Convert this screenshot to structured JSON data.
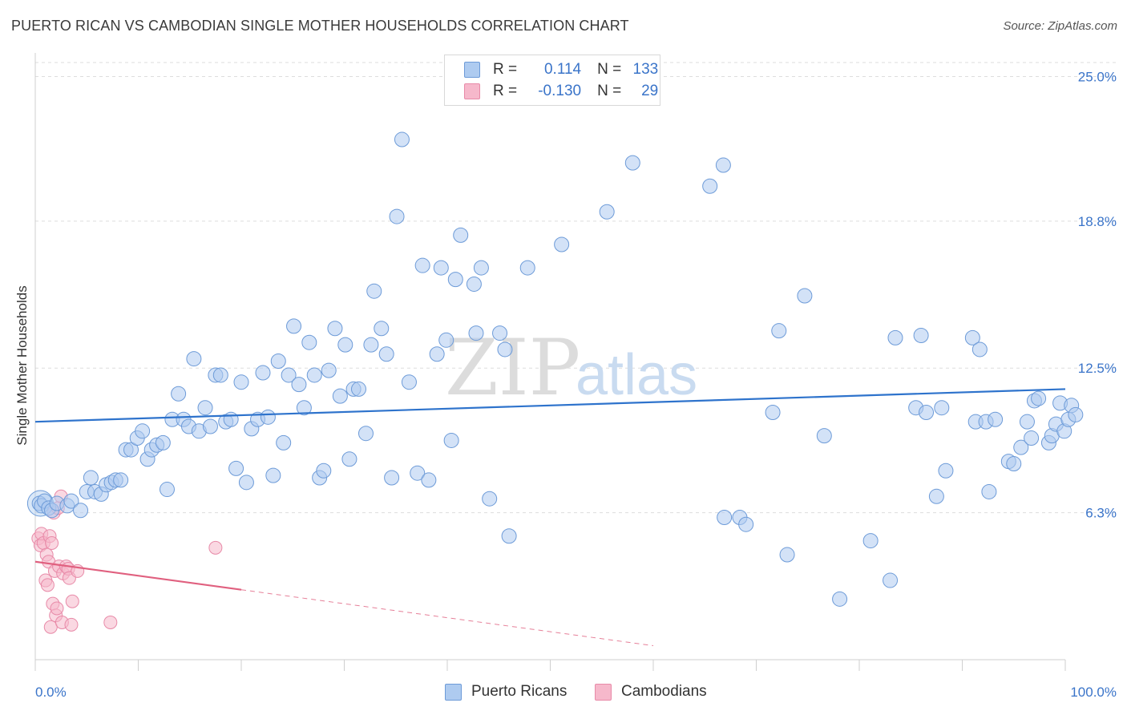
{
  "title": "PUERTO RICAN VS CAMBODIAN SINGLE MOTHER HOUSEHOLDS CORRELATION CHART",
  "source": "Source: ZipAtlas.com",
  "watermark": {
    "zip": "ZIP",
    "atlas": "atlas"
  },
  "colors": {
    "blue_fill": "#aecbf0",
    "blue_stroke": "#6d9bd8",
    "blue_line": "#2e73cc",
    "pink_fill": "#f6b8cb",
    "pink_stroke": "#e88aa8",
    "pink_line": "#e0607f",
    "axis_label": "#3a74c9",
    "grid": "#dddddd"
  },
  "legend": {
    "r_label": "R =",
    "n_label": "N =",
    "puerto_rican": {
      "r": "0.114",
      "n": "133"
    },
    "cambodian": {
      "r": "-0.130",
      "n": "29"
    }
  },
  "chart_data": {
    "type": "scatter",
    "title": "PUERTO RICAN VS CAMBODIAN SINGLE MOTHER HOUSEHOLDS CORRELATION CHART",
    "xlabel": "",
    "ylabel": "Single Mother Households",
    "xlim": [
      0,
      100
    ],
    "ylim": [
      0,
      25.6
    ],
    "x_tick_labels": [
      "0.0%",
      "100.0%"
    ],
    "y_ticks": [
      6.3,
      12.5,
      18.8,
      25.0
    ],
    "y_tick_labels": [
      "6.3%",
      "12.5%",
      "18.8%",
      "25.0%"
    ],
    "series": [
      {
        "name": "Puerto Ricans",
        "color": "blue",
        "trend": {
          "x": [
            0,
            100
          ],
          "y": [
            10.2,
            11.6
          ]
        },
        "points": [
          [
            0.4,
            6.7
          ],
          [
            0.6,
            6.6
          ],
          [
            0.9,
            6.8
          ],
          [
            1.3,
            6.5
          ],
          [
            1.6,
            6.4
          ],
          [
            2.1,
            6.7
          ],
          [
            3.1,
            6.6
          ],
          [
            3.5,
            6.8
          ],
          [
            4.4,
            6.4
          ],
          [
            5.0,
            7.2
          ],
          [
            5.4,
            7.8
          ],
          [
            5.8,
            7.2
          ],
          [
            6.4,
            7.1
          ],
          [
            6.9,
            7.5
          ],
          [
            7.4,
            7.6
          ],
          [
            7.8,
            7.7
          ],
          [
            8.3,
            7.7
          ],
          [
            8.8,
            9.0
          ],
          [
            9.3,
            9.0
          ],
          [
            9.9,
            9.5
          ],
          [
            10.4,
            9.8
          ],
          [
            10.9,
            8.6
          ],
          [
            11.3,
            9.0
          ],
          [
            11.8,
            9.2
          ],
          [
            12.4,
            9.3
          ],
          [
            12.8,
            7.3
          ],
          [
            13.3,
            10.3
          ],
          [
            13.9,
            11.4
          ],
          [
            14.4,
            10.3
          ],
          [
            14.9,
            10.0
          ],
          [
            15.4,
            12.9
          ],
          [
            15.9,
            9.8
          ],
          [
            16.5,
            10.8
          ],
          [
            17.0,
            10.0
          ],
          [
            17.5,
            12.2
          ],
          [
            18.0,
            12.2
          ],
          [
            18.5,
            10.2
          ],
          [
            19.0,
            10.3
          ],
          [
            19.5,
            8.2
          ],
          [
            20.0,
            11.9
          ],
          [
            20.5,
            7.6
          ],
          [
            21.0,
            9.9
          ],
          [
            21.6,
            10.3
          ],
          [
            22.1,
            12.3
          ],
          [
            22.6,
            10.4
          ],
          [
            23.1,
            7.9
          ],
          [
            23.6,
            12.8
          ],
          [
            24.1,
            9.3
          ],
          [
            24.6,
            12.2
          ],
          [
            25.1,
            14.3
          ],
          [
            25.6,
            11.8
          ],
          [
            26.1,
            10.8
          ],
          [
            26.6,
            13.6
          ],
          [
            27.1,
            12.2
          ],
          [
            27.6,
            7.8
          ],
          [
            28.0,
            8.1
          ],
          [
            28.5,
            12.4
          ],
          [
            29.1,
            14.2
          ],
          [
            29.6,
            11.3
          ],
          [
            30.1,
            13.5
          ],
          [
            30.5,
            8.6
          ],
          [
            30.9,
            11.6
          ],
          [
            31.4,
            11.6
          ],
          [
            32.1,
            9.7
          ],
          [
            32.6,
            13.5
          ],
          [
            32.9,
            15.8
          ],
          [
            33.6,
            14.2
          ],
          [
            34.1,
            13.1
          ],
          [
            34.6,
            7.8
          ],
          [
            35.1,
            19.0
          ],
          [
            35.6,
            22.3
          ],
          [
            36.3,
            11.9
          ],
          [
            37.1,
            8.0
          ],
          [
            37.6,
            16.9
          ],
          [
            38.2,
            7.7
          ],
          [
            39.0,
            13.1
          ],
          [
            39.4,
            16.8
          ],
          [
            39.9,
            13.7
          ],
          [
            40.4,
            9.4
          ],
          [
            40.8,
            16.3
          ],
          [
            41.3,
            18.2
          ],
          [
            42.6,
            16.1
          ],
          [
            42.8,
            14.0
          ],
          [
            43.3,
            16.8
          ],
          [
            44.1,
            6.9
          ],
          [
            45.1,
            14.0
          ],
          [
            45.6,
            13.3
          ],
          [
            46.0,
            5.3
          ],
          [
            47.8,
            16.8
          ],
          [
            51.1,
            17.8
          ],
          [
            55.5,
            19.2
          ],
          [
            58.0,
            21.3
          ],
          [
            65.5,
            20.3
          ],
          [
            66.8,
            21.2
          ],
          [
            66.9,
            6.1
          ],
          [
            68.4,
            6.1
          ],
          [
            69.0,
            5.8
          ],
          [
            71.6,
            10.6
          ],
          [
            72.2,
            14.1
          ],
          [
            73.0,
            4.5
          ],
          [
            74.7,
            15.6
          ],
          [
            76.6,
            9.6
          ],
          [
            78.1,
            2.6
          ],
          [
            81.1,
            5.1
          ],
          [
            83.0,
            3.4
          ],
          [
            83.5,
            13.8
          ],
          [
            85.5,
            10.8
          ],
          [
            86.0,
            13.9
          ],
          [
            86.5,
            10.6
          ],
          [
            87.5,
            7.0
          ],
          [
            88.0,
            10.8
          ],
          [
            88.4,
            8.1
          ],
          [
            91.0,
            13.8
          ],
          [
            91.3,
            10.2
          ],
          [
            91.7,
            13.3
          ],
          [
            92.3,
            10.2
          ],
          [
            92.6,
            7.2
          ],
          [
            93.2,
            10.3
          ],
          [
            94.5,
            8.5
          ],
          [
            95.0,
            8.4
          ],
          [
            95.7,
            9.1
          ],
          [
            96.3,
            10.2
          ],
          [
            96.7,
            9.5
          ],
          [
            97.0,
            11.1
          ],
          [
            97.4,
            11.2
          ],
          [
            98.4,
            9.3
          ],
          [
            98.7,
            9.6
          ],
          [
            99.1,
            10.1
          ],
          [
            99.5,
            11.0
          ],
          [
            99.9,
            9.8
          ],
          [
            100.3,
            10.3
          ],
          [
            100.6,
            10.9
          ],
          [
            101.0,
            10.5
          ]
        ]
      },
      {
        "name": "Cambodians",
        "color": "pink",
        "trend": {
          "x": [
            0,
            20
          ],
          "y": [
            4.2,
            3.0
          ],
          "dashed_to": {
            "x": [
              20,
              60
            ],
            "y": [
              3.0,
              0.6
            ]
          }
        },
        "points": [
          [
            0.3,
            5.2
          ],
          [
            0.5,
            4.9
          ],
          [
            0.6,
            5.4
          ],
          [
            0.8,
            5.0
          ],
          [
            1.0,
            3.4
          ],
          [
            1.1,
            4.5
          ],
          [
            1.2,
            3.2
          ],
          [
            1.3,
            4.2
          ],
          [
            1.4,
            5.3
          ],
          [
            1.5,
            1.4
          ],
          [
            1.6,
            5.0
          ],
          [
            1.7,
            2.4
          ],
          [
            1.8,
            6.3
          ],
          [
            1.9,
            3.8
          ],
          [
            2.0,
            1.9
          ],
          [
            2.1,
            2.2
          ],
          [
            2.2,
            6.5
          ],
          [
            2.3,
            4.0
          ],
          [
            2.5,
            7.0
          ],
          [
            2.6,
            1.6
          ],
          [
            2.7,
            3.7
          ],
          [
            3.0,
            4.0
          ],
          [
            3.2,
            3.9
          ],
          [
            3.3,
            3.5
          ],
          [
            3.5,
            1.5
          ],
          [
            3.6,
            2.5
          ],
          [
            4.1,
            3.8
          ],
          [
            7.3,
            1.6
          ],
          [
            17.5,
            4.8
          ]
        ]
      }
    ]
  },
  "bottom_legend": {
    "puerto_ricans": "Puerto Ricans",
    "cambodians": "Cambodians"
  }
}
